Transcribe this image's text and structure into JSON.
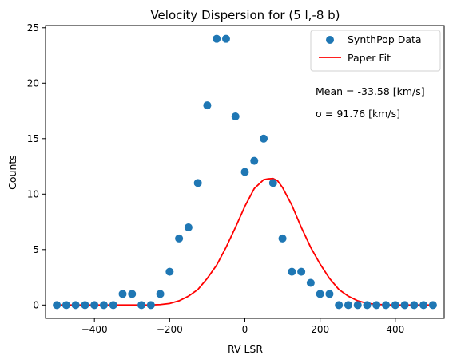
{
  "chart_data": {
    "type": "scatter",
    "title": "Velocity Dispersion for (5 l,-8 b)",
    "xlabel": "RV LSR",
    "ylabel": "Counts",
    "xlim": [
      -530,
      530
    ],
    "ylim": [
      -1.2,
      25.2
    ],
    "xticks": [
      -400,
      -200,
      0,
      200,
      400
    ],
    "xtick_labels": [
      "−400",
      "−200",
      "0",
      "200",
      "400"
    ],
    "yticks": [
      0,
      5,
      10,
      15,
      20,
      25
    ],
    "ytick_labels": [
      "0",
      "5",
      "10",
      "15",
      "20",
      "25"
    ],
    "grid": false,
    "legend_position": "top-right",
    "series": [
      {
        "name": "SynthPop Data",
        "kind": "scatter",
        "color": "#1f77b4",
        "x": [
          -500,
          -475,
          -450,
          -425,
          -400,
          -375,
          -350,
          -325,
          -300,
          -275,
          -250,
          -225,
          -200,
          -175,
          -150,
          -125,
          -100,
          -75,
          -50,
          -25,
          0,
          25,
          50,
          75,
          100,
          125,
          150,
          175,
          200,
          225,
          250,
          275,
          300,
          325,
          350,
          375,
          400,
          425,
          450,
          475,
          500
        ],
        "y": [
          0,
          0,
          0,
          0,
          0,
          0,
          0,
          1,
          1,
          0,
          0,
          1,
          3,
          6,
          7,
          11,
          18,
          24,
          24,
          17,
          12,
          13,
          15,
          11,
          6,
          3,
          3,
          2,
          1,
          1,
          0,
          0,
          0,
          0,
          0,
          0,
          0,
          0,
          0,
          0,
          0
        ]
      },
      {
        "name": "Paper Fit",
        "kind": "line",
        "color": "#ff0000",
        "x": [
          -500,
          -475,
          -450,
          -425,
          -400,
          -375,
          -350,
          -325,
          -300,
          -275,
          -250,
          -225,
          -200,
          -175,
          -150,
          -125,
          -100,
          -75,
          -50,
          -25,
          0,
          25,
          50,
          62,
          75,
          87,
          100,
          125,
          150,
          175,
          200,
          225,
          250,
          275,
          300,
          325,
          350,
          375,
          400,
          425,
          450,
          475,
          500
        ],
        "y": [
          0,
          0,
          0,
          0,
          0,
          0,
          0,
          0,
          0,
          0,
          0.01,
          0.04,
          0.14,
          0.38,
          0.8,
          1.4,
          2.4,
          3.6,
          5.2,
          7.0,
          8.9,
          10.5,
          11.3,
          11.38,
          11.4,
          11.2,
          10.6,
          9.0,
          7.0,
          5.2,
          3.7,
          2.4,
          1.4,
          0.8,
          0.38,
          0.16,
          0.06,
          0.02,
          0,
          0,
          0,
          0,
          0
        ]
      }
    ],
    "annotations": [
      "Mean = -33.58 [km/s]",
      "σ = 91.76 [km/s]"
    ]
  }
}
